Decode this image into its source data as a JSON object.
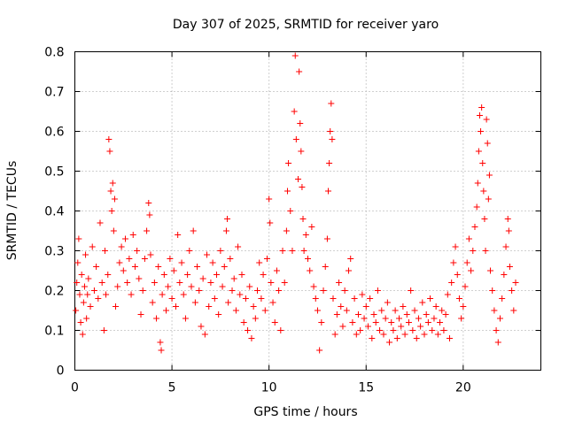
{
  "chart_data": {
    "type": "scatter",
    "title": "Day 307 of 2025, SRMTID for receiver yaro",
    "xlabel": "GPS time / hours",
    "ylabel": "SRMTID / TECUs",
    "xlim": [
      0,
      24
    ],
    "ylim": [
      0,
      0.8
    ],
    "xticks": [
      0,
      5,
      10,
      15,
      20
    ],
    "yticks": [
      0,
      0.1,
      0.2,
      0.3,
      0.4,
      0.5,
      0.6,
      0.7,
      0.8
    ],
    "xtick_labels": [
      "0",
      "5",
      "10",
      "15",
      "20"
    ],
    "ytick_labels": [
      "0",
      "0.1",
      "0.2",
      "0.3",
      "0.4",
      "0.5",
      "0.6",
      "0.7",
      "0.8"
    ],
    "grid": true,
    "marker": "+",
    "marker_color": "#ff0000",
    "series": [
      {
        "name": "SRMTID",
        "points": [
          [
            0.05,
            0.15
          ],
          [
            0.1,
            0.22
          ],
          [
            0.15,
            0.27
          ],
          [
            0.2,
            0.33
          ],
          [
            0.25,
            0.19
          ],
          [
            0.3,
            0.12
          ],
          [
            0.35,
            0.24
          ],
          [
            0.4,
            0.09
          ],
          [
            0.45,
            0.17
          ],
          [
            0.5,
            0.21
          ],
          [
            0.55,
            0.29
          ],
          [
            0.6,
            0.13
          ],
          [
            0.65,
            0.19
          ],
          [
            0.7,
            0.23
          ],
          [
            0.8,
            0.16
          ],
          [
            0.9,
            0.31
          ],
          [
            1.0,
            0.2
          ],
          [
            1.1,
            0.26
          ],
          [
            1.2,
            0.18
          ],
          [
            1.3,
            0.37
          ],
          [
            1.4,
            0.22
          ],
          [
            1.5,
            0.1
          ],
          [
            1.55,
            0.3
          ],
          [
            1.6,
            0.19
          ],
          [
            1.7,
            0.24
          ],
          [
            1.75,
            0.58
          ],
          [
            1.8,
            0.55
          ],
          [
            1.85,
            0.45
          ],
          [
            1.9,
            0.4
          ],
          [
            1.95,
            0.47
          ],
          [
            2.0,
            0.35
          ],
          [
            2.05,
            0.43
          ],
          [
            2.1,
            0.16
          ],
          [
            2.2,
            0.21
          ],
          [
            2.3,
            0.27
          ],
          [
            2.4,
            0.31
          ],
          [
            2.5,
            0.25
          ],
          [
            2.6,
            0.33
          ],
          [
            2.7,
            0.22
          ],
          [
            2.8,
            0.28
          ],
          [
            2.9,
            0.19
          ],
          [
            3.0,
            0.34
          ],
          [
            3.1,
            0.26
          ],
          [
            3.2,
            0.3
          ],
          [
            3.3,
            0.23
          ],
          [
            3.4,
            0.14
          ],
          [
            3.5,
            0.2
          ],
          [
            3.6,
            0.28
          ],
          [
            3.7,
            0.35
          ],
          [
            3.8,
            0.42
          ],
          [
            3.85,
            0.39
          ],
          [
            3.9,
            0.29
          ],
          [
            4.0,
            0.17
          ],
          [
            4.1,
            0.22
          ],
          [
            4.2,
            0.13
          ],
          [
            4.3,
            0.26
          ],
          [
            4.4,
            0.07
          ],
          [
            4.45,
            0.05
          ],
          [
            4.5,
            0.19
          ],
          [
            4.6,
            0.24
          ],
          [
            4.7,
            0.15
          ],
          [
            4.8,
            0.21
          ],
          [
            4.9,
            0.28
          ],
          [
            5.0,
            0.18
          ],
          [
            5.1,
            0.25
          ],
          [
            5.2,
            0.16
          ],
          [
            5.3,
            0.34
          ],
          [
            5.4,
            0.22
          ],
          [
            5.5,
            0.27
          ],
          [
            5.6,
            0.19
          ],
          [
            5.7,
            0.13
          ],
          [
            5.8,
            0.24
          ],
          [
            5.9,
            0.3
          ],
          [
            6.0,
            0.21
          ],
          [
            6.1,
            0.35
          ],
          [
            6.2,
            0.17
          ],
          [
            6.3,
            0.26
          ],
          [
            6.4,
            0.2
          ],
          [
            6.5,
            0.11
          ],
          [
            6.6,
            0.23
          ],
          [
            6.7,
            0.09
          ],
          [
            6.8,
            0.29
          ],
          [
            6.9,
            0.16
          ],
          [
            7.0,
            0.22
          ],
          [
            7.1,
            0.27
          ],
          [
            7.2,
            0.18
          ],
          [
            7.3,
            0.24
          ],
          [
            7.4,
            0.14
          ],
          [
            7.5,
            0.3
          ],
          [
            7.6,
            0.21
          ],
          [
            7.7,
            0.26
          ],
          [
            7.8,
            0.35
          ],
          [
            7.85,
            0.38
          ],
          [
            7.9,
            0.17
          ],
          [
            8.0,
            0.28
          ],
          [
            8.1,
            0.2
          ],
          [
            8.2,
            0.23
          ],
          [
            8.3,
            0.15
          ],
          [
            8.4,
            0.31
          ],
          [
            8.5,
            0.19
          ],
          [
            8.6,
            0.24
          ],
          [
            8.7,
            0.12
          ],
          [
            8.8,
            0.18
          ],
          [
            8.9,
            0.1
          ],
          [
            9.0,
            0.21
          ],
          [
            9.1,
            0.08
          ],
          [
            9.2,
            0.16
          ],
          [
            9.3,
            0.13
          ],
          [
            9.4,
            0.2
          ],
          [
            9.5,
            0.27
          ],
          [
            9.6,
            0.18
          ],
          [
            9.7,
            0.24
          ],
          [
            9.8,
            0.15
          ],
          [
            9.9,
            0.28
          ],
          [
            10.0,
            0.43
          ],
          [
            10.05,
            0.37
          ],
          [
            10.1,
            0.22
          ],
          [
            10.2,
            0.17
          ],
          [
            10.3,
            0.12
          ],
          [
            10.4,
            0.25
          ],
          [
            10.5,
            0.2
          ],
          [
            10.6,
            0.1
          ],
          [
            10.7,
            0.3
          ],
          [
            10.8,
            0.22
          ],
          [
            10.9,
            0.35
          ],
          [
            10.95,
            0.45
          ],
          [
            11.0,
            0.52
          ],
          [
            11.1,
            0.4
          ],
          [
            11.2,
            0.3
          ],
          [
            11.3,
            0.65
          ],
          [
            11.35,
            0.79
          ],
          [
            11.4,
            0.58
          ],
          [
            11.5,
            0.48
          ],
          [
            11.55,
            0.75
          ],
          [
            11.6,
            0.62
          ],
          [
            11.65,
            0.55
          ],
          [
            11.7,
            0.46
          ],
          [
            11.75,
            0.38
          ],
          [
            11.8,
            0.3
          ],
          [
            11.9,
            0.34
          ],
          [
            12.0,
            0.28
          ],
          [
            12.1,
            0.25
          ],
          [
            12.2,
            0.36
          ],
          [
            12.3,
            0.21
          ],
          [
            12.4,
            0.18
          ],
          [
            12.5,
            0.15
          ],
          [
            12.6,
            0.05
          ],
          [
            12.7,
            0.12
          ],
          [
            12.8,
            0.2
          ],
          [
            12.9,
            0.26
          ],
          [
            13.0,
            0.33
          ],
          [
            13.05,
            0.45
          ],
          [
            13.1,
            0.52
          ],
          [
            13.15,
            0.6
          ],
          [
            13.2,
            0.67
          ],
          [
            13.25,
            0.58
          ],
          [
            13.3,
            0.18
          ],
          [
            13.4,
            0.09
          ],
          [
            13.5,
            0.14
          ],
          [
            13.6,
            0.22
          ],
          [
            13.7,
            0.16
          ],
          [
            13.8,
            0.11
          ],
          [
            13.9,
            0.2
          ],
          [
            14.0,
            0.15
          ],
          [
            14.1,
            0.25
          ],
          [
            14.2,
            0.28
          ],
          [
            14.3,
            0.12
          ],
          [
            14.4,
            0.18
          ],
          [
            14.5,
            0.09
          ],
          [
            14.6,
            0.14
          ],
          [
            14.7,
            0.1
          ],
          [
            14.8,
            0.19
          ],
          [
            14.9,
            0.13
          ],
          [
            15.0,
            0.16
          ],
          [
            15.1,
            0.11
          ],
          [
            15.2,
            0.18
          ],
          [
            15.3,
            0.08
          ],
          [
            15.4,
            0.14
          ],
          [
            15.5,
            0.12
          ],
          [
            15.6,
            0.2
          ],
          [
            15.7,
            0.1
          ],
          [
            15.8,
            0.15
          ],
          [
            15.9,
            0.09
          ],
          [
            16.0,
            0.13
          ],
          [
            16.1,
            0.17
          ],
          [
            16.2,
            0.07
          ],
          [
            16.3,
            0.12
          ],
          [
            16.4,
            0.1
          ],
          [
            16.5,
            0.15
          ],
          [
            16.6,
            0.08
          ],
          [
            16.7,
            0.13
          ],
          [
            16.8,
            0.11
          ],
          [
            16.9,
            0.16
          ],
          [
            17.0,
            0.09
          ],
          [
            17.1,
            0.14
          ],
          [
            17.2,
            0.12
          ],
          [
            17.3,
            0.2
          ],
          [
            17.4,
            0.1
          ],
          [
            17.5,
            0.15
          ],
          [
            17.6,
            0.08
          ],
          [
            17.7,
            0.13
          ],
          [
            17.8,
            0.11
          ],
          [
            17.9,
            0.17
          ],
          [
            18.0,
            0.09
          ],
          [
            18.1,
            0.14
          ],
          [
            18.2,
            0.12
          ],
          [
            18.3,
            0.18
          ],
          [
            18.4,
            0.1
          ],
          [
            18.5,
            0.13
          ],
          [
            18.6,
            0.16
          ],
          [
            18.7,
            0.09
          ],
          [
            18.8,
            0.12
          ],
          [
            18.9,
            0.15
          ],
          [
            19.0,
            0.1
          ],
          [
            19.1,
            0.14
          ],
          [
            19.2,
            0.19
          ],
          [
            19.3,
            0.08
          ],
          [
            19.4,
            0.22
          ],
          [
            19.5,
            0.27
          ],
          [
            19.6,
            0.31
          ],
          [
            19.7,
            0.24
          ],
          [
            19.8,
            0.18
          ],
          [
            19.9,
            0.13
          ],
          [
            20.0,
            0.16
          ],
          [
            20.1,
            0.21
          ],
          [
            20.2,
            0.27
          ],
          [
            20.3,
            0.33
          ],
          [
            20.4,
            0.25
          ],
          [
            20.5,
            0.3
          ],
          [
            20.6,
            0.36
          ],
          [
            20.7,
            0.41
          ],
          [
            20.75,
            0.47
          ],
          [
            20.8,
            0.55
          ],
          [
            20.85,
            0.64
          ],
          [
            20.9,
            0.6
          ],
          [
            20.95,
            0.66
          ],
          [
            21.0,
            0.52
          ],
          [
            21.05,
            0.45
          ],
          [
            21.1,
            0.38
          ],
          [
            21.15,
            0.3
          ],
          [
            21.2,
            0.63
          ],
          [
            21.25,
            0.57
          ],
          [
            21.3,
            0.43
          ],
          [
            21.35,
            0.49
          ],
          [
            21.4,
            0.25
          ],
          [
            21.5,
            0.2
          ],
          [
            21.6,
            0.15
          ],
          [
            21.7,
            0.1
          ],
          [
            21.8,
            0.07
          ],
          [
            21.9,
            0.13
          ],
          [
            22.0,
            0.18
          ],
          [
            22.1,
            0.24
          ],
          [
            22.2,
            0.31
          ],
          [
            22.3,
            0.38
          ],
          [
            22.35,
            0.35
          ],
          [
            22.4,
            0.26
          ],
          [
            22.5,
            0.2
          ],
          [
            22.6,
            0.15
          ],
          [
            22.7,
            0.22
          ]
        ]
      }
    ]
  }
}
